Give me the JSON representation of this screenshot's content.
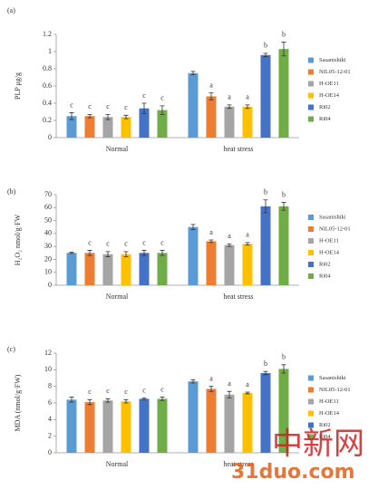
{
  "chart_data": [
    {
      "type": "bar",
      "panel_label": "(a)",
      "y_label": "PLP μg/g",
      "categories": [
        "Normal",
        "heat stress"
      ],
      "ylim": [
        0,
        1.2
      ],
      "yticks": [
        0,
        0.2,
        0.4,
        0.6,
        0.8,
        1,
        1.2
      ],
      "series": [
        {
          "name": "Sasanishiki",
          "color": "#5b9bd5",
          "values": [
            0.25,
            0.75
          ],
          "errors": [
            0.04,
            0.02
          ],
          "annotations": [
            "c",
            null
          ]
        },
        {
          "name": "NIL05-12-01",
          "color": "#ed7d31",
          "values": [
            0.25,
            0.48
          ],
          "errors": [
            0.02,
            0.04
          ],
          "annotations": [
            "c",
            "a"
          ]
        },
        {
          "name": "H-OE11",
          "color": "#a5a5a5",
          "values": [
            0.24,
            0.36
          ],
          "errors": [
            0.03,
            0.02
          ],
          "annotations": [
            "c",
            "a"
          ]
        },
        {
          "name": "H-OE14",
          "color": "#ffc000",
          "values": [
            0.24,
            0.36
          ],
          "errors": [
            0.02,
            0.02
          ],
          "annotations": [
            "c",
            "a"
          ]
        },
        {
          "name": "Ri02",
          "color": "#4472c4",
          "values": [
            0.34,
            0.96
          ],
          "errors": [
            0.06,
            0.02
          ],
          "annotations": [
            "c",
            "b"
          ]
        },
        {
          "name": "Ri04",
          "color": "#70ad47",
          "values": [
            0.32,
            1.03
          ],
          "errors": [
            0.05,
            0.08
          ],
          "annotations": [
            "c",
            "b"
          ]
        }
      ]
    },
    {
      "type": "bar",
      "panel_label": "(b)",
      "y_label": "H₂O₂ nmol/g·FW",
      "categories": [
        "Normal",
        "heat stress"
      ],
      "ylim": [
        0,
        70
      ],
      "yticks": [
        0,
        10,
        20,
        30,
        40,
        50,
        60,
        70
      ],
      "series": [
        {
          "name": "Sasanishiki",
          "color": "#5b9bd5",
          "values": [
            25,
            45
          ],
          "errors": [
            0.5,
            2
          ],
          "annotations": [
            null,
            null
          ]
        },
        {
          "name": "NIL05-12-01",
          "color": "#ed7d31",
          "values": [
            25,
            34
          ],
          "errors": [
            2,
            1
          ],
          "annotations": [
            "c",
            "a"
          ]
        },
        {
          "name": "H-OE11",
          "color": "#a5a5a5",
          "values": [
            24,
            31
          ],
          "errors": [
            2,
            1
          ],
          "annotations": [
            "c",
            "a"
          ]
        },
        {
          "name": "H-OE14",
          "color": "#ffc000",
          "values": [
            24,
            32
          ],
          "errors": [
            2,
            1
          ],
          "annotations": [
            "c",
            "a"
          ]
        },
        {
          "name": "Ri02",
          "color": "#4472c4",
          "values": [
            25,
            61
          ],
          "errors": [
            2,
            5
          ],
          "annotations": [
            "c",
            "b"
          ]
        },
        {
          "name": "Ri04",
          "color": "#70ad47",
          "values": [
            25,
            61
          ],
          "errors": [
            2,
            3
          ],
          "annotations": [
            "c",
            "b"
          ]
        }
      ]
    },
    {
      "type": "bar",
      "panel_label": "(c)",
      "y_label": "MDA (nmol/g·FW)",
      "categories": [
        "Normal",
        "heat stress"
      ],
      "ylim": [
        0,
        12
      ],
      "yticks": [
        0,
        2,
        4,
        6,
        8,
        10,
        12
      ],
      "series": [
        {
          "name": "Sasanishiki",
          "color": "#5b9bd5",
          "values": [
            6.4,
            8.6
          ],
          "errors": [
            0.3,
            0.2
          ],
          "annotations": [
            null,
            null
          ]
        },
        {
          "name": "NIL05-12-01",
          "color": "#ed7d31",
          "values": [
            6.1,
            7.7
          ],
          "errors": [
            0.3,
            0.3
          ],
          "annotations": [
            "c",
            "a"
          ]
        },
        {
          "name": "H-OE11",
          "color": "#a5a5a5",
          "values": [
            6.3,
            7.0
          ],
          "errors": [
            0.2,
            0.4
          ],
          "annotations": [
            "c",
            "a"
          ]
        },
        {
          "name": "H-OE14",
          "color": "#ffc000",
          "values": [
            6.2,
            7.2
          ],
          "errors": [
            0.2,
            0.1
          ],
          "annotations": [
            "c",
            "a"
          ]
        },
        {
          "name": "Ri02",
          "color": "#4472c4",
          "values": [
            6.5,
            9.6
          ],
          "errors": [
            0.1,
            0.2
          ],
          "annotations": [
            "c",
            "b"
          ]
        },
        {
          "name": "Ri04",
          "color": "#70ad47",
          "values": [
            6.5,
            10.1
          ],
          "errors": [
            0.2,
            0.5
          ],
          "annotations": [
            "c",
            "b"
          ]
        }
      ]
    }
  ],
  "watermark": [
    "中新网",
    "31duo.com"
  ]
}
